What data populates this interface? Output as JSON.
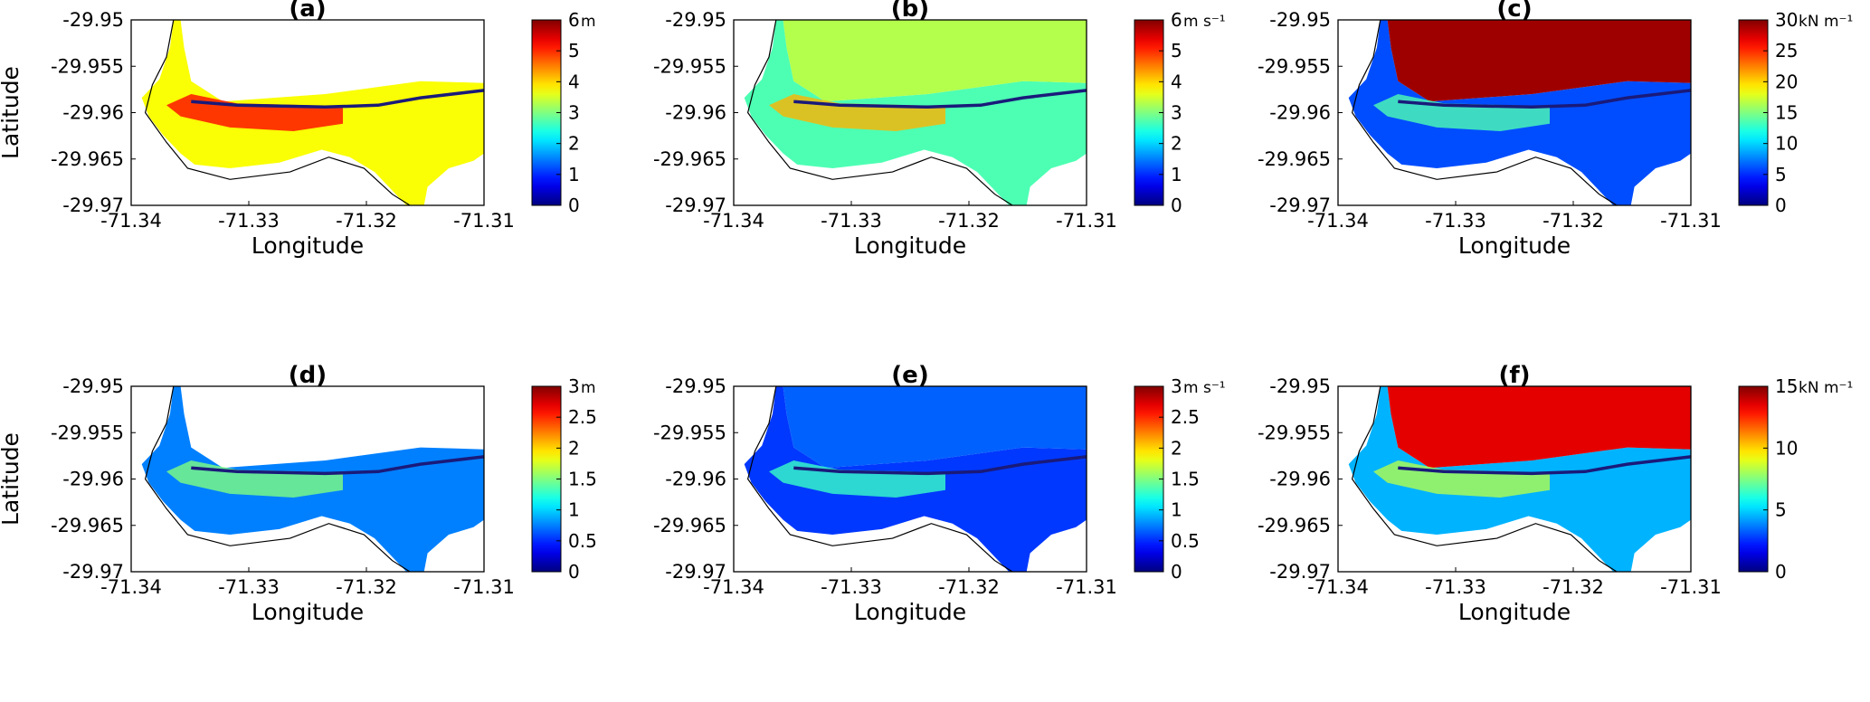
{
  "chart_data": [
    {
      "type": "heatmap",
      "title": "(a)",
      "xlabel": "Longitude",
      "ylabel": "Latitude",
      "xlim": [
        -71.34,
        -71.31
      ],
      "ylim": [
        -29.97,
        -29.95
      ],
      "xticks": [
        "-71.34",
        "-71.33",
        "-71.32",
        "-71.31"
      ],
      "yticks": [
        "-29.95",
        "-29.955",
        "-29.96",
        "-29.965",
        "-29.97"
      ],
      "colorbar": {
        "min": 0,
        "max": 6,
        "ticks": [
          "0",
          "1",
          "2",
          "3",
          "4",
          "5",
          "6"
        ],
        "unit": "m"
      },
      "field_intensity": 0.62,
      "offshore_intensity": null
    },
    {
      "type": "heatmap",
      "title": "(b)",
      "xlabel": "Longitude",
      "ylabel": "",
      "xlim": [
        -71.34,
        -71.31
      ],
      "ylim": [
        -29.97,
        -29.95
      ],
      "xticks": [
        "-71.34",
        "-71.33",
        "-71.32",
        "-71.31"
      ],
      "yticks": [
        "-29.95",
        "-29.955",
        "-29.96",
        "-29.965",
        "-29.97"
      ],
      "colorbar": {
        "min": 0,
        "max": 6,
        "ticks": [
          "0",
          "1",
          "2",
          "3",
          "4",
          "5",
          "6"
        ],
        "unit": "m s⁻¹"
      },
      "field_intensity": 0.45,
      "offshore_intensity": 0.55
    },
    {
      "type": "heatmap",
      "title": "(c)",
      "xlabel": "Longitude",
      "ylabel": "",
      "xlim": [
        -71.34,
        -71.31
      ],
      "ylim": [
        -29.97,
        -29.95
      ],
      "xticks": [
        "-71.34",
        "-71.33",
        "-71.32",
        "-71.31"
      ],
      "yticks": [
        "-29.95",
        "-29.955",
        "-29.96",
        "-29.965",
        "-29.97"
      ],
      "colorbar": {
        "min": 0,
        "max": 30,
        "ticks": [
          "0",
          "5",
          "10",
          "15",
          "20",
          "25",
          "30"
        ],
        "unit": "kN m⁻¹"
      },
      "field_intensity": 0.2,
      "offshore_intensity": 0.97
    },
    {
      "type": "heatmap",
      "title": "(d)",
      "xlabel": "Longitude",
      "ylabel": "Latitude",
      "xlim": [
        -71.34,
        -71.31
      ],
      "ylim": [
        -29.97,
        -29.95
      ],
      "xticks": [
        "-71.34",
        "-71.33",
        "-71.32",
        "-71.31"
      ],
      "yticks": [
        "-29.95",
        "-29.955",
        "-29.96",
        "-29.965",
        "-29.97"
      ],
      "colorbar": {
        "min": 0,
        "max": 3,
        "ticks": [
          "0",
          "0.5",
          "1",
          "1.5",
          "2",
          "2.5",
          "3"
        ],
        "unit": "m"
      },
      "field_intensity": 0.25,
      "offshore_intensity": null
    },
    {
      "type": "heatmap",
      "title": "(e)",
      "xlabel": "Longitude",
      "ylabel": "",
      "xlim": [
        -71.34,
        -71.31
      ],
      "ylim": [
        -29.97,
        -29.95
      ],
      "xticks": [
        "-71.34",
        "-71.33",
        "-71.32",
        "-71.31"
      ],
      "yticks": [
        "-29.95",
        "-29.955",
        "-29.96",
        "-29.965",
        "-29.97"
      ],
      "colorbar": {
        "min": 0,
        "max": 3,
        "ticks": [
          "0",
          "0.5",
          "1",
          "1.5",
          "2",
          "2.5",
          "3"
        ],
        "unit": "m s⁻¹"
      },
      "field_intensity": 0.18,
      "offshore_intensity": 0.22
    },
    {
      "type": "heatmap",
      "title": "(f)",
      "xlabel": "Longitude",
      "ylabel": "",
      "xlim": [
        -71.34,
        -71.31
      ],
      "ylim": [
        -29.97,
        -29.95
      ],
      "xticks": [
        "-71.34",
        "-71.33",
        "-71.32",
        "-71.31"
      ],
      "yticks": [
        "-29.95",
        "-29.955",
        "-29.96",
        "-29.965",
        "-29.97"
      ],
      "colorbar": {
        "min": 0,
        "max": 15,
        "ticks": [
          "0",
          "5",
          "10",
          "15"
        ],
        "unit": "kN m⁻¹"
      },
      "field_intensity": 0.3,
      "offshore_intensity": 0.9
    }
  ]
}
